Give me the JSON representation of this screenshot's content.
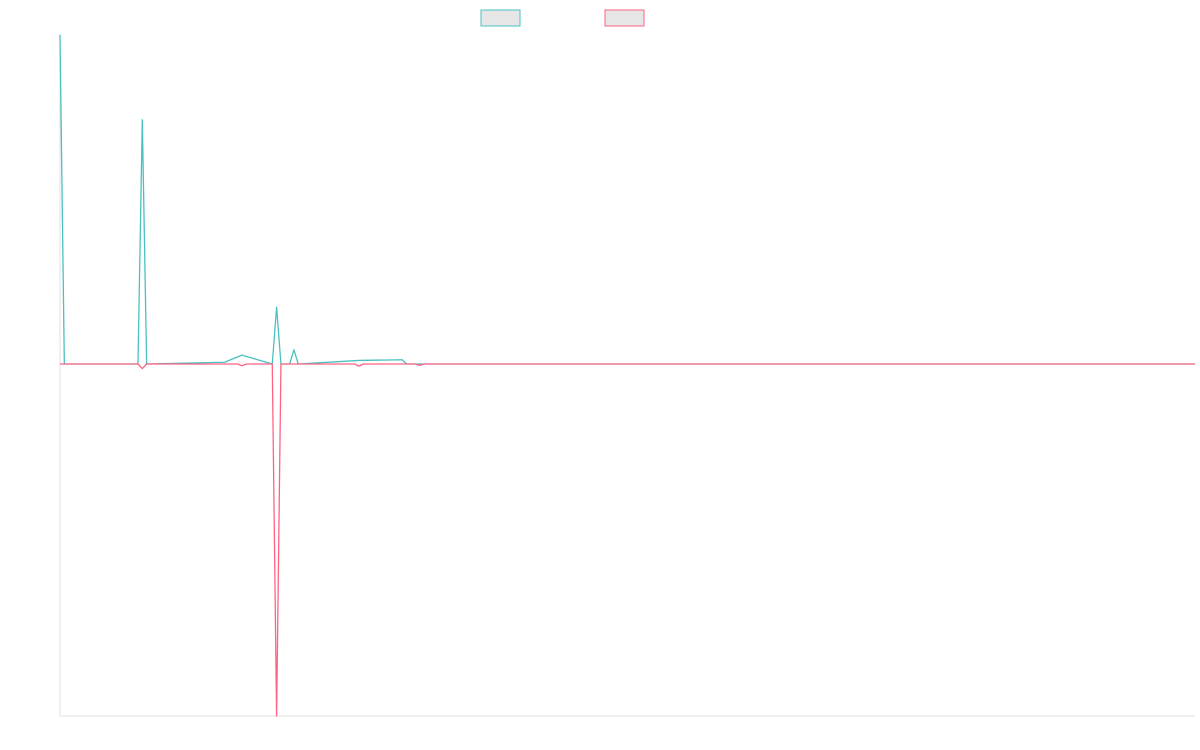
{
  "colors": {
    "series_a": "#4bc0c0",
    "series_b": "#ff6384",
    "legend_fill": "#e6e6e6",
    "axis": "#e0e0e0"
  },
  "chart_data": {
    "type": "line",
    "title": "",
    "xlabel": "",
    "ylabel": "",
    "legend_position": "top",
    "grid": false,
    "ylim": [
      -1,
      1
    ],
    "xlim": [
      0,
      262
    ],
    "series": [
      {
        "name": "",
        "color": "#4bc0c0",
        "points": [
          [
            0,
            0.93
          ],
          [
            1,
            0
          ],
          [
            18,
            0
          ],
          [
            19,
            0.69
          ],
          [
            20,
            0
          ],
          [
            38,
            0.005
          ],
          [
            42,
            0.025
          ],
          [
            49,
            0
          ],
          [
            50,
            0.16
          ],
          [
            51,
            0
          ],
          [
            53,
            0
          ],
          [
            54,
            0.04
          ],
          [
            55,
            0
          ],
          [
            69,
            0.01
          ],
          [
            79,
            0.012
          ],
          [
            80,
            0
          ],
          [
            262,
            0
          ]
        ]
      },
      {
        "name": "",
        "color": "#ff6384",
        "points": [
          [
            0,
            0
          ],
          [
            18,
            0
          ],
          [
            19,
            -0.013
          ],
          [
            20,
            0
          ],
          [
            41,
            0
          ],
          [
            42,
            -0.005
          ],
          [
            43,
            0
          ],
          [
            49,
            0
          ],
          [
            50,
            -1.0
          ],
          [
            51,
            0
          ],
          [
            68,
            0
          ],
          [
            69,
            -0.006
          ],
          [
            70,
            0
          ],
          [
            82,
            0
          ],
          [
            83,
            -0.004
          ],
          [
            84,
            0
          ],
          [
            262,
            0
          ]
        ]
      }
    ]
  }
}
